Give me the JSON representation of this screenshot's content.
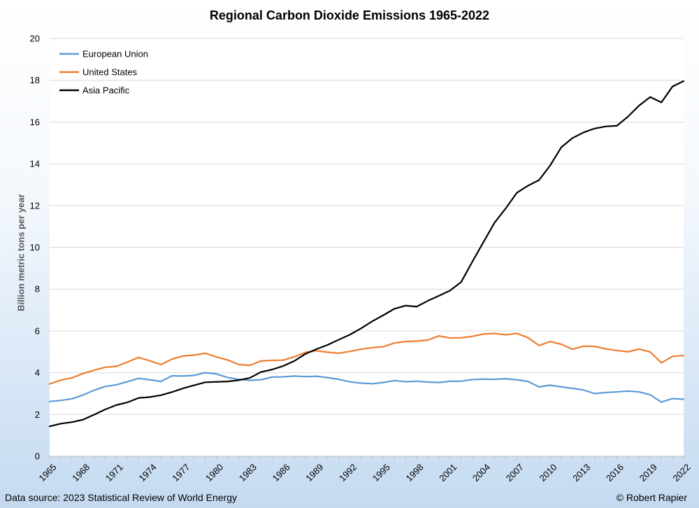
{
  "chart_data": {
    "type": "line",
    "title": "Regional Carbon Dioxide Emissions 1965-2022",
    "xlabel": "",
    "ylabel": "Billion metric tons per year",
    "xlim": [
      1965,
      2022
    ],
    "ylim": [
      0,
      20
    ],
    "yticks": [
      0,
      2,
      4,
      6,
      8,
      10,
      12,
      14,
      16,
      18,
      20
    ],
    "xticks": [
      1965,
      1968,
      1971,
      1974,
      1977,
      1980,
      1983,
      1986,
      1989,
      1992,
      1995,
      1998,
      2001,
      2004,
      2007,
      2010,
      2013,
      2016,
      2019,
      2022
    ],
    "grid": true,
    "legend_position": "top-left",
    "x": [
      1965,
      1966,
      1967,
      1968,
      1969,
      1970,
      1971,
      1972,
      1973,
      1974,
      1975,
      1976,
      1977,
      1978,
      1979,
      1980,
      1981,
      1982,
      1983,
      1984,
      1985,
      1986,
      1987,
      1988,
      1989,
      1990,
      1991,
      1992,
      1993,
      1994,
      1995,
      1996,
      1997,
      1998,
      1999,
      2000,
      2001,
      2002,
      2003,
      2004,
      2005,
      2006,
      2007,
      2008,
      2009,
      2010,
      2011,
      2012,
      2013,
      2014,
      2015,
      2016,
      2017,
      2018,
      2019,
      2020,
      2021,
      2022
    ],
    "series": [
      {
        "name": "European Union",
        "color": "#5b9bd5",
        "values": [
          2.62,
          2.67,
          2.75,
          2.93,
          3.16,
          3.34,
          3.42,
          3.57,
          3.73,
          3.66,
          3.58,
          3.85,
          3.84,
          3.87,
          4.0,
          3.94,
          3.77,
          3.68,
          3.63,
          3.66,
          3.79,
          3.8,
          3.84,
          3.81,
          3.83,
          3.76,
          3.68,
          3.56,
          3.5,
          3.47,
          3.53,
          3.62,
          3.57,
          3.59,
          3.55,
          3.53,
          3.59,
          3.59,
          3.67,
          3.69,
          3.68,
          3.71,
          3.66,
          3.58,
          3.32,
          3.4,
          3.32,
          3.25,
          3.17,
          3.0,
          3.05,
          3.08,
          3.12,
          3.08,
          2.94,
          2.59,
          2.76,
          2.73
        ]
      },
      {
        "name": "United States",
        "color": "#ed7d31",
        "values": [
          3.46,
          3.64,
          3.75,
          3.96,
          4.12,
          4.26,
          4.3,
          4.51,
          4.73,
          4.57,
          4.39,
          4.65,
          4.8,
          4.84,
          4.93,
          4.75,
          4.61,
          4.39,
          4.35,
          4.56,
          4.59,
          4.6,
          4.76,
          4.97,
          5.05,
          4.98,
          4.93,
          5.02,
          5.12,
          5.2,
          5.24,
          5.42,
          5.49,
          5.51,
          5.56,
          5.76,
          5.66,
          5.67,
          5.74,
          5.85,
          5.88,
          5.81,
          5.88,
          5.68,
          5.3,
          5.49,
          5.36,
          5.12,
          5.27,
          5.26,
          5.14,
          5.06,
          5.0,
          5.13,
          4.99,
          4.47,
          4.78,
          4.82
        ]
      },
      {
        "name": "Asia Pacific",
        "color": "#000000",
        "values": [
          1.43,
          1.56,
          1.63,
          1.75,
          1.99,
          2.24,
          2.45,
          2.58,
          2.79,
          2.83,
          2.92,
          3.07,
          3.25,
          3.4,
          3.54,
          3.56,
          3.58,
          3.64,
          3.75,
          4.03,
          4.15,
          4.32,
          4.56,
          4.9,
          5.13,
          5.33,
          5.58,
          5.82,
          6.12,
          6.46,
          6.75,
          7.06,
          7.21,
          7.16,
          7.44,
          7.68,
          7.93,
          8.34,
          9.31,
          10.25,
          11.18,
          11.86,
          12.61,
          12.95,
          13.22,
          13.92,
          14.79,
          15.23,
          15.5,
          15.69,
          15.79,
          15.82,
          16.26,
          16.79,
          17.2,
          16.94,
          17.7,
          17.96
        ]
      }
    ]
  },
  "footer": {
    "source": "Data source: 2023 Statistical Review of World Energy",
    "credit": "© Robert Rapier"
  }
}
